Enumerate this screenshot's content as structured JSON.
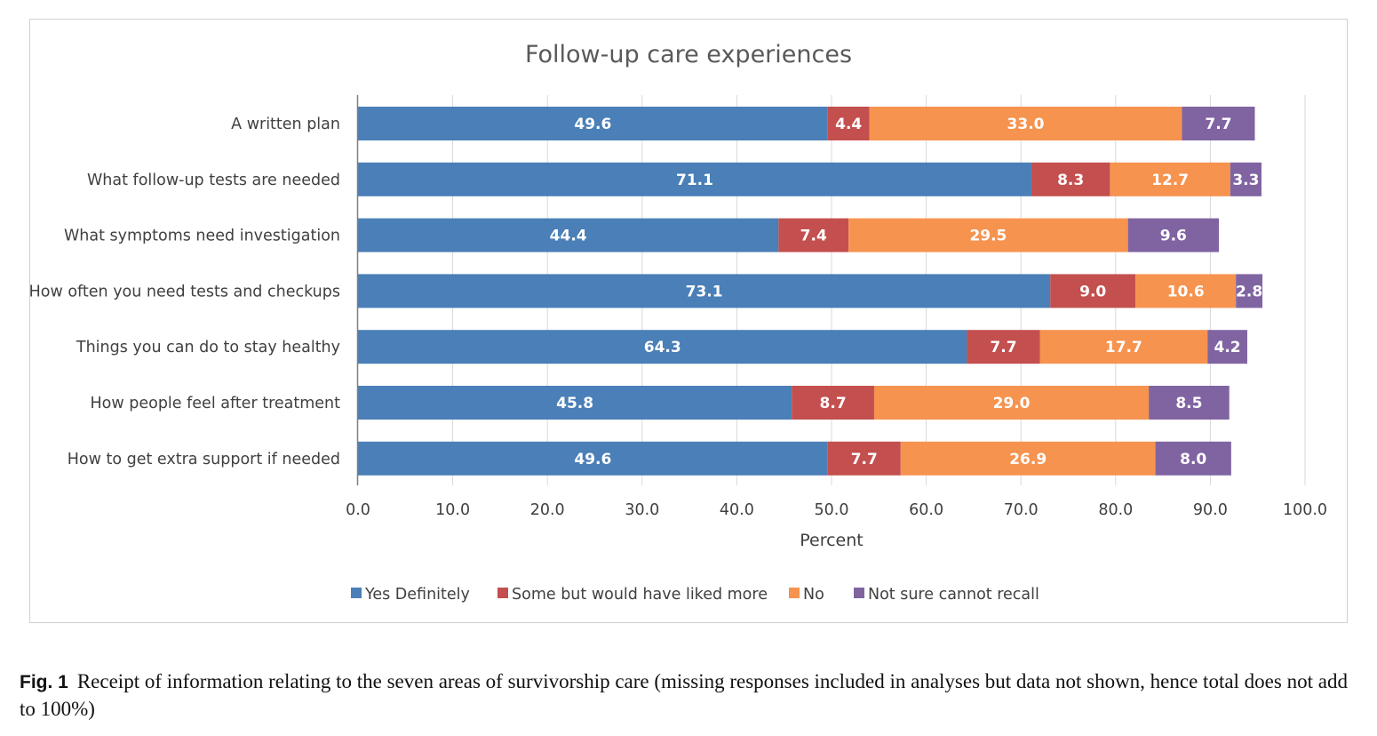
{
  "chart_data": {
    "type": "bar",
    "orientation": "horizontal",
    "stacked": true,
    "title": "Follow-up care experiences",
    "xlabel": "Percent",
    "xlim": [
      0,
      100
    ],
    "xticks": [
      "0.0",
      "10.0",
      "20.0",
      "30.0",
      "40.0",
      "50.0",
      "60.0",
      "70.0",
      "80.0",
      "90.0",
      "100.0"
    ],
    "grid": true,
    "legend_position": "bottom",
    "categories": [
      "A written plan",
      "What follow-up tests are needed",
      "What symptoms need investigation",
      "How often you need tests and checkups",
      "Things you can do to stay healthy",
      "How people feel after treatment",
      "How to get extra support if needed"
    ],
    "series": [
      {
        "name": "Yes Definitely",
        "color": "#4a7fb7",
        "values": [
          49.6,
          71.1,
          44.4,
          73.1,
          64.3,
          45.8,
          49.6
        ],
        "labels": [
          "49.6",
          "71.1",
          "44.4",
          "73.1",
          "64.3",
          "45.8",
          "49.6"
        ]
      },
      {
        "name": "Some but would have liked more",
        "color": "#c44f4f",
        "values": [
          4.4,
          8.3,
          7.4,
          9.0,
          7.7,
          8.7,
          7.7
        ],
        "labels": [
          "4.4",
          "8.3",
          "7.4",
          "9.0",
          "7.7",
          "8.7",
          "7.7"
        ]
      },
      {
        "name": "No",
        "color": "#f6934f",
        "values": [
          33.0,
          12.7,
          29.5,
          10.6,
          17.7,
          29.0,
          26.9
        ],
        "labels": [
          "33.0",
          "12.7",
          "29.5",
          "10.6",
          "17.7",
          "29.0",
          "26.9"
        ]
      },
      {
        "name": "Not sure cannot recall",
        "color": "#8064a2",
        "values": [
          7.7,
          3.3,
          9.6,
          2.8,
          4.2,
          8.5,
          8.0
        ],
        "labels": [
          "7.7",
          "3.3",
          "9.6",
          "2.8",
          "4.2",
          "8.5",
          "8.0"
        ]
      }
    ]
  },
  "caption": {
    "label": "Fig. 1",
    "text": "Receipt of information relating to the seven areas of survivorship care (missing responses included in analyses but data not shown, hence total does not add to 100%)"
  }
}
